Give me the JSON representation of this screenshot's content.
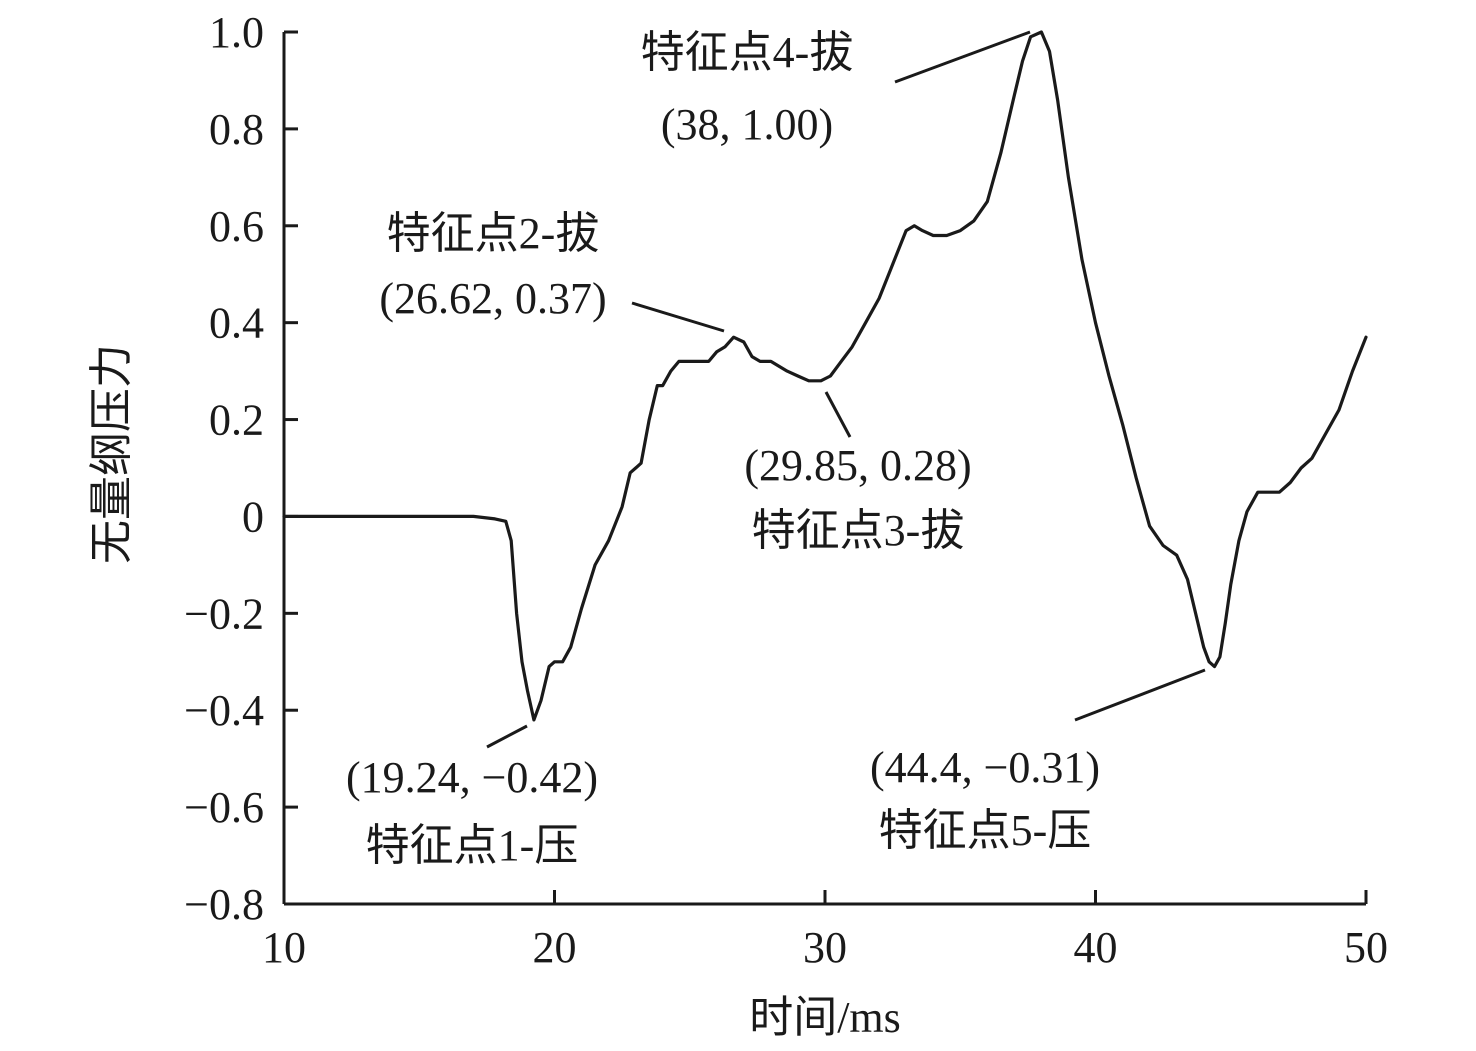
{
  "chart_data": {
    "type": "line",
    "title": "",
    "xlabel": "时间/ms",
    "ylabel": "无量纲压力",
    "xlim": [
      10,
      50
    ],
    "ylim": [
      -0.8,
      1.0
    ],
    "x_ticks": [
      "10",
      "20",
      "30",
      "40",
      "50"
    ],
    "y_ticks": [
      "1.0",
      "0.8",
      "0.6",
      "0.4",
      "0.2",
      "0",
      "−0.2",
      "−0.4",
      "−0.6",
      "−0.8"
    ],
    "grid": false,
    "series": [
      {
        "x": [
          10,
          12,
          14,
          16,
          17,
          17.8,
          18.2,
          18.4,
          18.6,
          18.8,
          19.0,
          19.24,
          19.5,
          19.8,
          20.0,
          20.3,
          20.6,
          21.0,
          21.5,
          22.0,
          22.5,
          22.8,
          23.0,
          23.2,
          23.5,
          23.8,
          24.0,
          24.3,
          24.6,
          25.0,
          25.3,
          25.7,
          26.0,
          26.3,
          26.62,
          27.0,
          27.3,
          27.6,
          28.0,
          28.3,
          28.6,
          29.0,
          29.4,
          29.85,
          30.2,
          30.6,
          31.0,
          31.5,
          32.0,
          32.5,
          33.0,
          33.3,
          33.6,
          34.0,
          34.5,
          35.0,
          35.5,
          36.0,
          36.5,
          37.0,
          37.3,
          37.6,
          38.0,
          38.3,
          38.6,
          39.0,
          39.5,
          40.0,
          40.5,
          41.0,
          41.5,
          42.0,
          42.5,
          43.0,
          43.4,
          43.7,
          44.0,
          44.2,
          44.4,
          44.6,
          44.8,
          45.0,
          45.3,
          45.6,
          46.0,
          46.4,
          46.8,
          47.2,
          47.6,
          48.0,
          48.5,
          49.0,
          49.5,
          50.0
        ],
        "y": [
          0,
          0,
          0,
          0,
          0,
          -0.005,
          -0.01,
          -0.05,
          -0.2,
          -0.3,
          -0.36,
          -0.42,
          -0.38,
          -0.31,
          -0.3,
          -0.3,
          -0.27,
          -0.19,
          -0.1,
          -0.05,
          0.02,
          0.09,
          0.1,
          0.11,
          0.2,
          0.27,
          0.27,
          0.3,
          0.32,
          0.32,
          0.32,
          0.32,
          0.34,
          0.35,
          0.37,
          0.36,
          0.33,
          0.32,
          0.32,
          0.31,
          0.3,
          0.29,
          0.28,
          0.28,
          0.29,
          0.32,
          0.35,
          0.4,
          0.45,
          0.52,
          0.59,
          0.6,
          0.59,
          0.58,
          0.58,
          0.59,
          0.61,
          0.65,
          0.75,
          0.87,
          0.94,
          0.99,
          1.0,
          0.96,
          0.86,
          0.7,
          0.53,
          0.4,
          0.29,
          0.19,
          0.08,
          -0.02,
          -0.06,
          -0.08,
          -0.13,
          -0.2,
          -0.27,
          -0.3,
          -0.31,
          -0.29,
          -0.22,
          -0.14,
          -0.05,
          0.01,
          0.05,
          0.05,
          0.05,
          0.07,
          0.1,
          0.12,
          0.17,
          0.22,
          0.3,
          0.37
        ]
      }
    ],
    "annotations": [
      {
        "line1": "特征点1-压",
        "line2": "(19.24, −0.42)",
        "x": 19.24,
        "y": -0.42
      },
      {
        "line1": "特征点2-拔",
        "line2": "(26.62, 0.37)",
        "x": 26.62,
        "y": 0.37
      },
      {
        "line1": "特征点3-拔",
        "line2": "(29.85, 0.28)",
        "x": 29.85,
        "y": 0.28
      },
      {
        "line1": "特征点4-拔",
        "line2": "(38, 1.00)",
        "x": 38,
        "y": 1.0
      },
      {
        "line1": "特征点5-压",
        "line2": "(44.4, −0.31)",
        "x": 44.4,
        "y": -0.31
      }
    ]
  }
}
